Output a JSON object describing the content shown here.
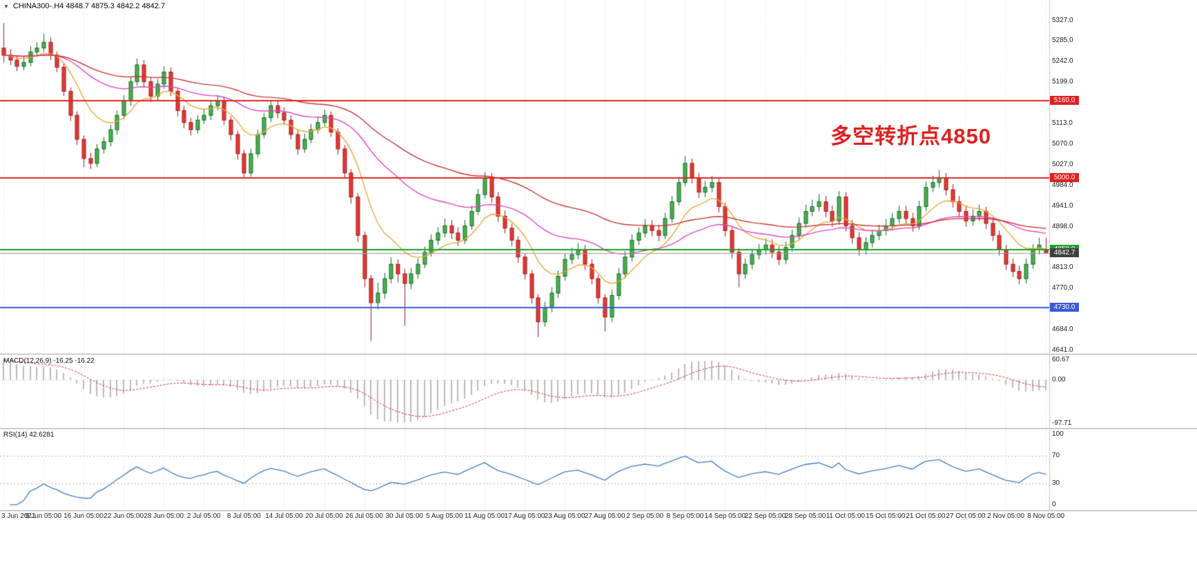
{
  "window": {
    "dropdown_icon": "▼",
    "symbol_line": "CHINA300-.H4 4848.7 4875.3 4842.2 4842.7"
  },
  "annotation": {
    "text": "多空转折点4850",
    "color": "#e02020"
  },
  "chart_data": {
    "type": "candlestick",
    "symbol": "CHINA300-",
    "timeframe": "H4",
    "ohlc_header": {
      "open": 4848.7,
      "high": 4875.3,
      "low": 4842.2,
      "close": 4842.7
    },
    "price_axis": {
      "min": 4635,
      "max": 5370,
      "ticks": [
        5327.0,
        5285.0,
        5242.0,
        5199.0,
        5113.0,
        5070.0,
        5027.0,
        4984.0,
        4941.0,
        4898.0,
        4813.0,
        4770.0,
        4684.0,
        4641.0
      ]
    },
    "hlines": [
      {
        "value": 5160.0,
        "label": "5160.0",
        "color": "#e02020"
      },
      {
        "value": 5000.0,
        "label": "5000.0",
        "color": "#e02020"
      },
      {
        "value": 4850.0,
        "label": "4850.0",
        "color": "#15a123"
      },
      {
        "value": 4730.0,
        "label": "4730.0",
        "color": "#3a5bd9"
      }
    ],
    "current_price": {
      "value": 4842.7,
      "label": "4842.7",
      "badge_color": "#404040",
      "line_color": "#9a9a9a"
    },
    "x_labels": [
      "3 Jun 2021",
      "9 Jun 05:00",
      "16 Jun 05:00",
      "22 Jun 05:00",
      "28 Jun 05:00",
      "2 Jul 05:00",
      "8 Jul 05:00",
      "14 Jul 05:00",
      "20 Jul 05:00",
      "26 Jul 05:00",
      "30 Jul 05:00",
      "5 Aug 05:00",
      "11 Aug 05:00",
      "17 Aug 05:00",
      "23 Aug 05:00",
      "27 Aug 05:00",
      "2 Sep 05:00",
      "8 Sep 05:00",
      "14 Sep 05:00",
      "22 Sep 05:00",
      "28 Sep 05:00",
      "11 Oct 05:00",
      "15 Oct 05:00",
      "21 Oct 05:00",
      "27 Oct 05:00",
      "2 Nov 05:00",
      "8 Nov 05:00"
    ],
    "candles": [
      [
        5270,
        5322,
        5240,
        5255
      ],
      [
        5255,
        5268,
        5235,
        5245
      ],
      [
        5245,
        5255,
        5222,
        5232
      ],
      [
        5232,
        5252,
        5224,
        5240
      ],
      [
        5240,
        5274,
        5232,
        5262
      ],
      [
        5262,
        5282,
        5252,
        5270
      ],
      [
        5270,
        5300,
        5262,
        5282
      ],
      [
        5282,
        5292,
        5245,
        5255
      ],
      [
        5255,
        5263,
        5220,
        5230
      ],
      [
        5230,
        5238,
        5170,
        5180
      ],
      [
        5180,
        5188,
        5118,
        5130
      ],
      [
        5130,
        5138,
        5068,
        5080
      ],
      [
        5080,
        5088,
        5022,
        5040
      ],
      [
        5040,
        5052,
        5018,
        5030
      ],
      [
        5030,
        5070,
        5022,
        5060
      ],
      [
        5060,
        5085,
        5050,
        5075
      ],
      [
        5075,
        5110,
        5065,
        5100
      ],
      [
        5100,
        5140,
        5090,
        5130
      ],
      [
        5130,
        5172,
        5122,
        5160
      ],
      [
        5160,
        5210,
        5150,
        5200
      ],
      [
        5200,
        5248,
        5192,
        5235
      ],
      [
        5235,
        5245,
        5188,
        5200
      ],
      [
        5200,
        5210,
        5158,
        5170
      ],
      [
        5170,
        5205,
        5160,
        5195
      ],
      [
        5195,
        5232,
        5186,
        5220
      ],
      [
        5220,
        5230,
        5170,
        5180
      ],
      [
        5180,
        5188,
        5128,
        5140
      ],
      [
        5140,
        5150,
        5103,
        5115
      ],
      [
        5115,
        5125,
        5088,
        5100
      ],
      [
        5100,
        5130,
        5092,
        5120
      ],
      [
        5120,
        5142,
        5112,
        5130
      ],
      [
        5130,
        5160,
        5120,
        5150
      ],
      [
        5150,
        5172,
        5140,
        5160
      ],
      [
        5160,
        5168,
        5110,
        5120
      ],
      [
        5120,
        5128,
        5078,
        5090
      ],
      [
        5090,
        5098,
        5038,
        5050
      ],
      [
        5050,
        5058,
        4998,
        5010
      ],
      [
        5010,
        5060,
        5002,
        5050
      ],
      [
        5050,
        5100,
        5042,
        5090
      ],
      [
        5090,
        5135,
        5082,
        5125
      ],
      [
        5125,
        5162,
        5116,
        5150
      ],
      [
        5150,
        5160,
        5124,
        5135
      ],
      [
        5135,
        5147,
        5110,
        5120
      ],
      [
        5120,
        5130,
        5080,
        5090
      ],
      [
        5090,
        5098,
        5048,
        5060
      ],
      [
        5060,
        5092,
        5052,
        5080
      ],
      [
        5080,
        5112,
        5072,
        5100
      ],
      [
        5100,
        5127,
        5092,
        5115
      ],
      [
        5115,
        5142,
        5106,
        5130
      ],
      [
        5130,
        5138,
        5085,
        5095
      ],
      [
        5095,
        5103,
        5048,
        5060
      ],
      [
        5060,
        5068,
        4998,
        5010
      ],
      [
        5010,
        5018,
        4946,
        4960
      ],
      [
        4960,
        4968,
        4866,
        4880
      ],
      [
        4880,
        4888,
        4772,
        4790
      ],
      [
        4790,
        4798,
        4660,
        4740
      ],
      [
        4740,
        4782,
        4726,
        4760
      ],
      [
        4760,
        4802,
        4748,
        4790
      ],
      [
        4790,
        4834,
        4780,
        4820
      ],
      [
        4820,
        4830,
        4782,
        4800
      ],
      [
        4800,
        4810,
        4692,
        4780
      ],
      [
        4780,
        4812,
        4768,
        4800
      ],
      [
        4800,
        4832,
        4790,
        4820
      ],
      [
        4820,
        4857,
        4812,
        4845
      ],
      [
        4845,
        4882,
        4836,
        4870
      ],
      [
        4870,
        4897,
        4860,
        4885
      ],
      [
        4885,
        4915,
        4876,
        4900
      ],
      [
        4900,
        4912,
        4872,
        4885
      ],
      [
        4885,
        4897,
        4858,
        4870
      ],
      [
        4870,
        4912,
        4862,
        4900
      ],
      [
        4900,
        4942,
        4892,
        4930
      ],
      [
        4930,
        4977,
        4922,
        4965
      ],
      [
        4965,
        5012,
        4956,
        5000
      ],
      [
        5000,
        5010,
        4948,
        4960
      ],
      [
        4960,
        4970,
        4908,
        4920
      ],
      [
        4920,
        4932,
        4884,
        4895
      ],
      [
        4895,
        4905,
        4858,
        4870
      ],
      [
        4870,
        4878,
        4823,
        4835
      ],
      [
        4835,
        4843,
        4788,
        4800
      ],
      [
        4800,
        4808,
        4738,
        4750
      ],
      [
        4750,
        4758,
        4668,
        4700
      ],
      [
        4700,
        4742,
        4690,
        4730
      ],
      [
        4730,
        4772,
        4720,
        4760
      ],
      [
        4760,
        4807,
        4750,
        4795
      ],
      [
        4795,
        4842,
        4786,
        4830
      ],
      [
        4830,
        4854,
        4820,
        4840
      ],
      [
        4840,
        4864,
        4830,
        4850
      ],
      [
        4850,
        4860,
        4808,
        4820
      ],
      [
        4820,
        4830,
        4778,
        4790
      ],
      [
        4790,
        4798,
        4738,
        4750
      ],
      [
        4750,
        4758,
        4680,
        4710
      ],
      [
        4710,
        4767,
        4700,
        4755
      ],
      [
        4755,
        4812,
        4746,
        4800
      ],
      [
        4800,
        4847,
        4790,
        4835
      ],
      [
        4835,
        4882,
        4826,
        4870
      ],
      [
        4870,
        4897,
        4860,
        4885
      ],
      [
        4885,
        4914,
        4876,
        4900
      ],
      [
        4900,
        4912,
        4878,
        4890
      ],
      [
        4890,
        4902,
        4868,
        4880
      ],
      [
        4880,
        4927,
        4872,
        4915
      ],
      [
        4915,
        4962,
        4906,
        4950
      ],
      [
        4950,
        5002,
        4942,
        4990
      ],
      [
        4990,
        5045,
        4982,
        5030
      ],
      [
        5030,
        5040,
        4988,
        5000
      ],
      [
        5000,
        5010,
        4958,
        4970
      ],
      [
        4970,
        4994,
        4960,
        4980
      ],
      [
        4980,
        5004,
        4970,
        4990
      ],
      [
        4990,
        4998,
        4928,
        4940
      ],
      [
        4940,
        4948,
        4878,
        4890
      ],
      [
        4890,
        4898,
        4832,
        4845
      ],
      [
        4845,
        4853,
        4772,
        4800
      ],
      [
        4800,
        4832,
        4790,
        4820
      ],
      [
        4820,
        4852,
        4810,
        4840
      ],
      [
        4840,
        4862,
        4830,
        4850
      ],
      [
        4850,
        4874,
        4840,
        4860
      ],
      [
        4860,
        4872,
        4833,
        4845
      ],
      [
        4845,
        4857,
        4818,
        4830
      ],
      [
        4830,
        4867,
        4820,
        4855
      ],
      [
        4855,
        4892,
        4846,
        4880
      ],
      [
        4880,
        4917,
        4870,
        4905
      ],
      [
        4905,
        4944,
        4896,
        4930
      ],
      [
        4930,
        4954,
        4920,
        4940
      ],
      [
        4940,
        4966,
        4930,
        4950
      ],
      [
        4950,
        4962,
        4918,
        4930
      ],
      [
        4930,
        4942,
        4898,
        4910
      ],
      [
        4910,
        4972,
        4902,
        4960
      ],
      [
        4960,
        4970,
        4888,
        4900
      ],
      [
        4900,
        4912,
        4863,
        4875
      ],
      [
        4875,
        4887,
        4838,
        4850
      ],
      [
        4850,
        4877,
        4840,
        4865
      ],
      [
        4865,
        4892,
        4855,
        4880
      ],
      [
        4880,
        4902,
        4870,
        4890
      ],
      [
        4890,
        4914,
        4880,
        4900
      ],
      [
        4900,
        4927,
        4890,
        4915
      ],
      [
        4915,
        4942,
        4905,
        4930
      ],
      [
        4930,
        4942,
        4903,
        4915
      ],
      [
        4915,
        4927,
        4888,
        4900
      ],
      [
        4900,
        4952,
        4892,
        4940
      ],
      [
        4940,
        4992,
        4930,
        4980
      ],
      [
        4980,
        5004,
        4970,
        4990
      ],
      [
        4990,
        5016,
        4980,
        5000
      ],
      [
        5000,
        5010,
        4963,
        4975
      ],
      [
        4975,
        4987,
        4938,
        4950
      ],
      [
        4950,
        4962,
        4918,
        4930
      ],
      [
        4930,
        4942,
        4898,
        4910
      ],
      [
        4910,
        4934,
        4900,
        4920
      ],
      [
        4920,
        4944,
        4910,
        4930
      ],
      [
        4930,
        4940,
        4893,
        4905
      ],
      [
        4905,
        4917,
        4868,
        4880
      ],
      [
        4880,
        4890,
        4838,
        4850
      ],
      [
        4850,
        4860,
        4808,
        4820
      ],
      [
        4820,
        4832,
        4793,
        4805
      ],
      [
        4805,
        4817,
        4778,
        4790
      ],
      [
        4790,
        4832,
        4780,
        4820
      ],
      [
        4820,
        4862,
        4810,
        4850
      ],
      [
        4850,
        4875,
        4840,
        4860
      ],
      [
        4849,
        4875.3,
        4842.2,
        4842.7
      ]
    ],
    "candle_colors": {
      "up_fill": "#4caf50",
      "up_border": "#0b6b23",
      "down_fill": "#e53935",
      "down_border": "#9e1b1b"
    },
    "moving_averages": [
      {
        "name": "ma-fast",
        "period": 10,
        "color": "#eda838"
      },
      {
        "name": "ma-mid",
        "period": 34,
        "color": "#dd44cc"
      },
      {
        "name": "ma-slow",
        "period": 60,
        "color": "#cc3333"
      }
    ],
    "macd": {
      "label": "MACD(12,26,9) -16.25 -16.22",
      "params": [
        12,
        26,
        9
      ],
      "values": [
        -16.25,
        -16.22
      ],
      "axis_ticks": [
        "60.67",
        "0.00",
        "-97.71"
      ],
      "hist_color": "#b9b9b9",
      "signal_color": "#e03030"
    },
    "rsi": {
      "label": "RSI(14) 42.6281",
      "period": 14,
      "value": 42.6281,
      "axis_ticks": [
        100,
        70,
        30,
        0
      ],
      "levels": [
        70,
        30
      ],
      "line_color": "#3b7dc4"
    }
  }
}
